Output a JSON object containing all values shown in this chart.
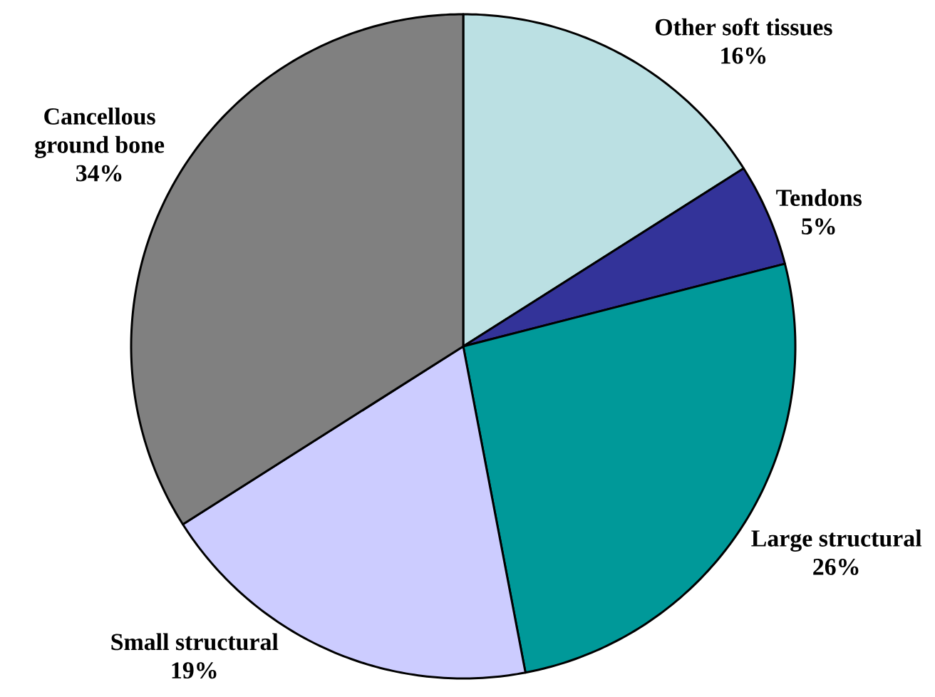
{
  "chart_data": {
    "type": "pie",
    "categories": [
      "Other soft tissues",
      "Tendons",
      "Large structural",
      "Small structural",
      "Cancellous ground bone"
    ],
    "values": [
      16,
      5,
      26,
      19,
      34
    ],
    "colors": [
      "#bbe0e3",
      "#333399",
      "#009999",
      "#ccccff",
      "#808080"
    ],
    "value_labels": [
      "16%",
      "5%",
      "26%",
      "19%",
      "34%"
    ]
  }
}
